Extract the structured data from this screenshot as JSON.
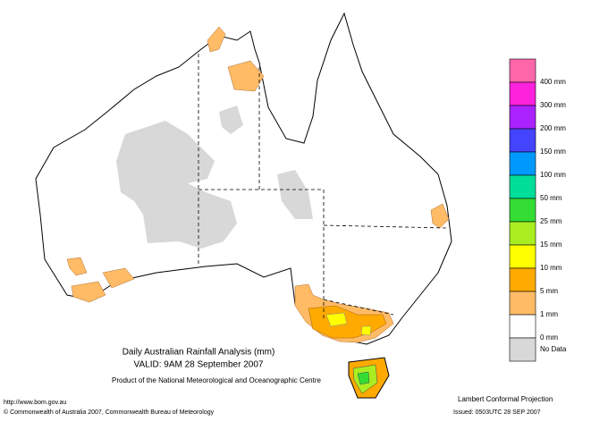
{
  "header": {
    "title": "Daily Australian Rainfall Analysis (mm)",
    "valid": "VALID: 9AM 28 September 2007",
    "product": "Product of the National Meteorological and Oceanographic Centre"
  },
  "legend": {
    "colors": [
      "#ff66aa",
      "#ff22dd",
      "#aa22ff",
      "#4444ff",
      "#0099ff",
      "#00dd99",
      "#33dd33",
      "#aaee22",
      "#ffff00",
      "#ffaa00",
      "#ffbb66",
      "#ffffff",
      "#d8d8d8"
    ],
    "labels": [
      "400 mm",
      "300 mm",
      "200 mm",
      "150 mm",
      "100 mm",
      "50 mm",
      "25 mm",
      "15 mm",
      "10 mm",
      "5 mm",
      "1 mm",
      "0 mm",
      "No Data"
    ]
  },
  "footer": {
    "url": "http://www.bom.gov.au",
    "copyright": "© Commonwealth of Australia 2007, Commonwealth Bureau of Meteorology",
    "projection": "Lambert Conformal Projection",
    "issued": "Issued: 0503UTC 28 SEP 2007"
  }
}
